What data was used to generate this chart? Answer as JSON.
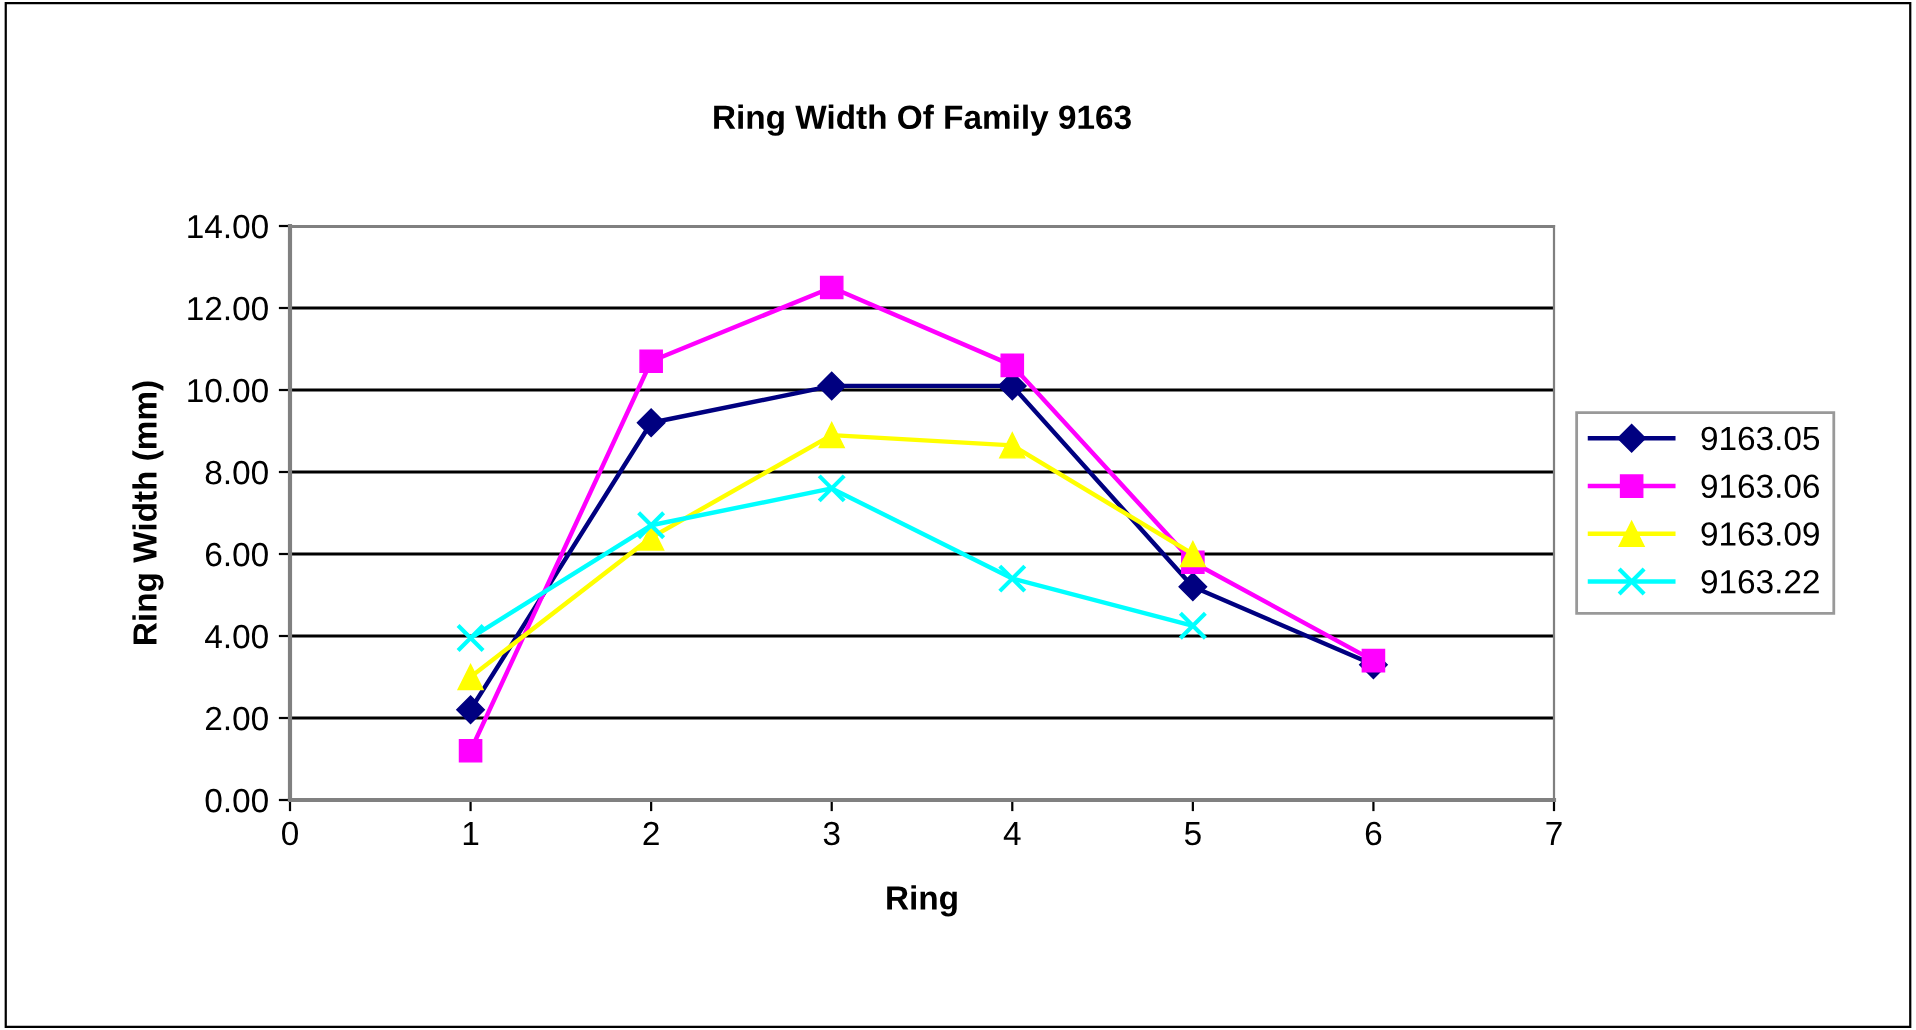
{
  "chart_data": {
    "type": "line",
    "title": "Ring Width Of Family 9163",
    "xlabel": "Ring",
    "ylabel": "Ring Width (mm)",
    "xlim": [
      0,
      7
    ],
    "xticks": [
      0,
      1,
      2,
      3,
      4,
      5,
      6,
      7
    ],
    "ylim": [
      0,
      14
    ],
    "yticks": [
      {
        "value": 0,
        "label": "0.00"
      },
      {
        "value": 2,
        "label": "2.00"
      },
      {
        "value": 4,
        "label": "4.00"
      },
      {
        "value": 6,
        "label": "6.00"
      },
      {
        "value": 8,
        "label": "8.00"
      },
      {
        "value": 10,
        "label": "10.00"
      },
      {
        "value": 12,
        "label": "12.00"
      },
      {
        "value": 14,
        "label": "14.00"
      }
    ],
    "grid": "y",
    "legend": "right",
    "series": [
      {
        "name": "9163.05",
        "color": "#000080",
        "marker": "diamond",
        "x": [
          1,
          2,
          3,
          4,
          5,
          6
        ],
        "values": [
          2.2,
          9.2,
          10.1,
          10.1,
          5.2,
          3.3
        ]
      },
      {
        "name": "9163.06",
        "color": "#ff00ff",
        "marker": "square",
        "x": [
          1,
          2,
          3,
          4,
          5,
          6
        ],
        "values": [
          1.2,
          10.7,
          12.5,
          10.6,
          5.8,
          3.4
        ]
      },
      {
        "name": "9163.09",
        "color": "#ffff00",
        "marker": "triangle",
        "x": [
          1,
          2,
          3,
          4,
          5
        ],
        "values": [
          3.0,
          6.4,
          8.9,
          8.65,
          6.0
        ]
      },
      {
        "name": "9163.22",
        "color": "#00ffff",
        "marker": "cross",
        "x": [
          1,
          2,
          3,
          4,
          5
        ],
        "values": [
          3.95,
          6.7,
          7.6,
          5.4,
          4.25
        ]
      }
    ]
  }
}
